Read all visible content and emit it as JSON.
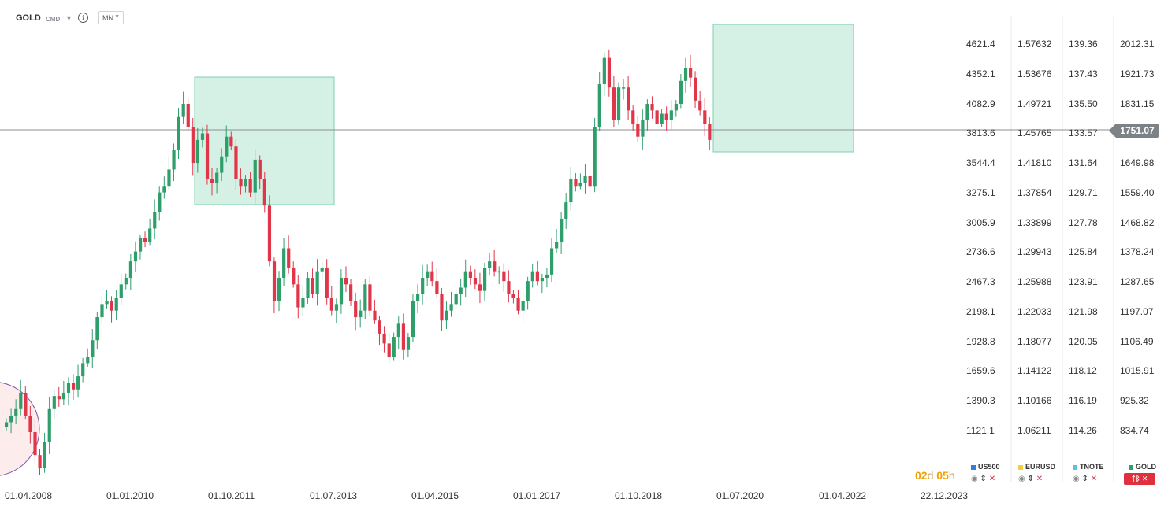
{
  "toolbar": {
    "symbol": "GOLD",
    "symbol_type": "CMD",
    "timeframe": "MN"
  },
  "scales": {
    "us500": [
      "4621.4",
      "4352.1",
      "4082.9",
      "3813.6",
      "3544.4",
      "3275.1",
      "3005.9",
      "2736.6",
      "2467.3",
      "2198.1",
      "1928.8",
      "1659.6",
      "1390.3",
      "1121.1"
    ],
    "eurusd": [
      "1.57632",
      "1.53676",
      "1.49721",
      "1.45765",
      "1.41810",
      "1.37854",
      "1.33899",
      "1.29943",
      "1.25988",
      "1.22033",
      "1.18077",
      "1.14122",
      "1.10166",
      "1.06211"
    ],
    "tnote": [
      "139.36",
      "137.43",
      "135.50",
      "133.57",
      "131.64",
      "129.71",
      "127.78",
      "125.84",
      "123.91",
      "121.98",
      "120.05",
      "118.12",
      "116.19",
      "114.26"
    ],
    "gold": [
      "2012.31",
      "1921.73",
      "1831.15",
      "",
      "1649.98",
      "1559.40",
      "1468.82",
      "1378.24",
      "1287.65",
      "1197.07",
      "1106.49",
      "1015.91",
      "925.32",
      "834.74"
    ]
  },
  "current_price": "1751.07",
  "x_axis": [
    "01.04.2008",
    "01.01.2010",
    "01.10.2011",
    "01.07.2013",
    "01.04.2015",
    "01.01.2017",
    "01.10.2018",
    "01.07.2020",
    "01.04.2022",
    "22.12.2023"
  ],
  "countdown": {
    "days": "02",
    "d": "d",
    "hours": "05",
    "h": "h"
  },
  "compare": [
    {
      "name": "US500",
      "color": "#2f7fe0"
    },
    {
      "name": "EURUSD",
      "color": "#f2cf3a"
    },
    {
      "name": "TNOTE",
      "color": "#59c1e8"
    },
    {
      "name": "GOLD",
      "color": "#2e9e6b"
    }
  ],
  "colors": {
    "up": "#2e9e6b",
    "down": "#e0364a",
    "zone": "#9be0c3"
  },
  "chart_data": {
    "type": "candlestick",
    "title": "GOLD",
    "interval": "MN",
    "price_range": [
      834.74,
      2012.31
    ],
    "current_price": 1751.07,
    "annotations": [
      "consolidation zone 2011-2012",
      "consolidation zone 2020-2022"
    ],
    "close_series": [
      860,
      880,
      900,
      950,
      880,
      830,
      760,
      720,
      800,
      900,
      940,
      930,
      950,
      980,
      960,
      1000,
      1040,
      1060,
      1110,
      1180,
      1220,
      1230,
      1200,
      1240,
      1280,
      1300,
      1350,
      1380,
      1420,
      1410,
      1450,
      1500,
      1560,
      1580,
      1630,
      1690,
      1790,
      1830,
      1760,
      1650,
      1720,
      1740,
      1600,
      1590,
      1620,
      1670,
      1730,
      1700,
      1600,
      1580,
      1600,
      1560,
      1660,
      1600,
      1520,
      1350,
      1230,
      1300,
      1390,
      1330,
      1280,
      1210,
      1240,
      1300,
      1250,
      1320,
      1330,
      1240,
      1200,
      1220,
      1300,
      1280,
      1230,
      1180,
      1200,
      1280,
      1200,
      1170,
      1130,
      1100,
      1060,
      1120,
      1160,
      1080,
      1120,
      1230,
      1250,
      1300,
      1320,
      1290,
      1250,
      1170,
      1200,
      1220,
      1250,
      1270,
      1320,
      1300,
      1280,
      1260,
      1330,
      1350,
      1320,
      1320,
      1290,
      1250,
      1240,
      1200,
      1230,
      1290,
      1320,
      1290,
      1300,
      1310,
      1390,
      1410,
      1480,
      1530,
      1600,
      1580,
      1590,
      1610,
      1580,
      1760,
      1890,
      1970,
      1880,
      1780,
      1880,
      1880,
      1810,
      1770,
      1730,
      1780,
      1830,
      1810,
      1770,
      1800,
      1780,
      1810,
      1830,
      1900,
      1940,
      1910,
      1840,
      1810,
      1770,
      1720
    ]
  }
}
